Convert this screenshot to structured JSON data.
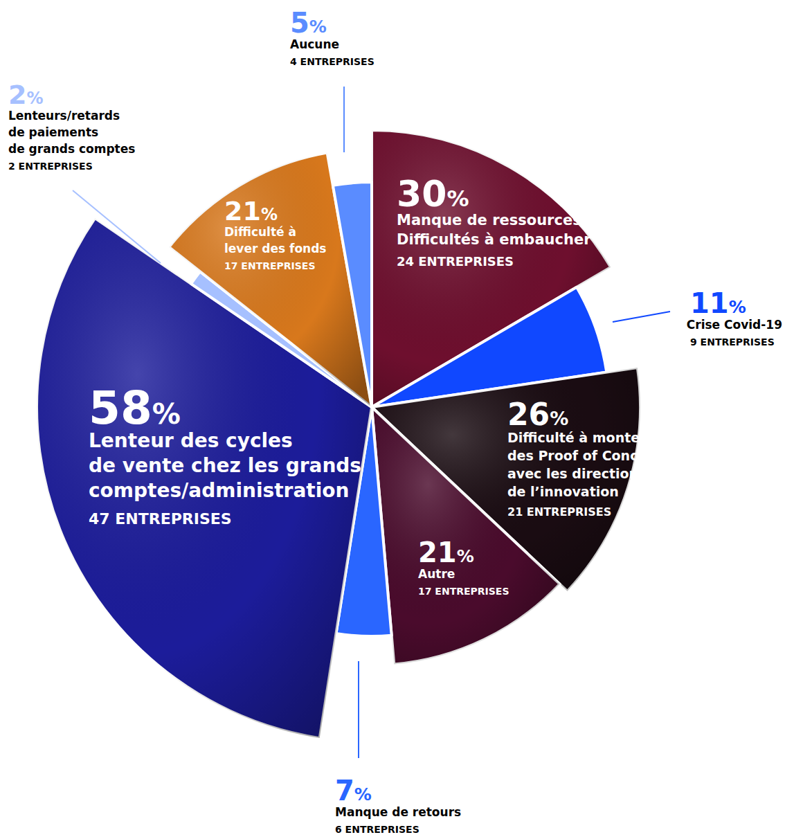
{
  "chart_data": {
    "type": "pie",
    "categories": [
      "Manque de ressources\nDifficultés à embaucher",
      "Crise Covid-19",
      "Difficulté à monter\ndes Proof of Concept\navec les directions\nde l’innovation",
      "Autre",
      "Manque de retours",
      "Lenteur des cycles\nde vente chez les grands\ncomptes/administration",
      "Lenteurs/retards\nde paiements\nde grands comptes",
      "Difficulté à\nlever des fonds",
      "Aucune"
    ],
    "values": [
      30,
      11,
      26,
      21,
      7,
      58,
      2,
      21,
      5
    ],
    "value_labels": [
      "30%",
      "11%",
      "26%",
      "21%",
      "7%",
      "58%",
      "2%",
      "21%",
      "5%"
    ],
    "count_labels": [
      "24 ENTREPRISES",
      "9 ENTREPRISES",
      "21 ENTREPRISES",
      "17 ENTREPRISES",
      "6 ENTREPRISES",
      "47 ENTREPRISES",
      "2 ENTREPRISES",
      "17 ENTREPRISES",
      "4 ENTREPRISES"
    ],
    "colors": [
      "#6e0f2e",
      "#1048ff",
      "#1a0c12",
      "#4a0b2c",
      "#2a66ff",
      "#1c1c9a",
      "#a6c0ff",
      "#d8781c",
      "#5a8cff"
    ],
    "data_labels": true
  }
}
